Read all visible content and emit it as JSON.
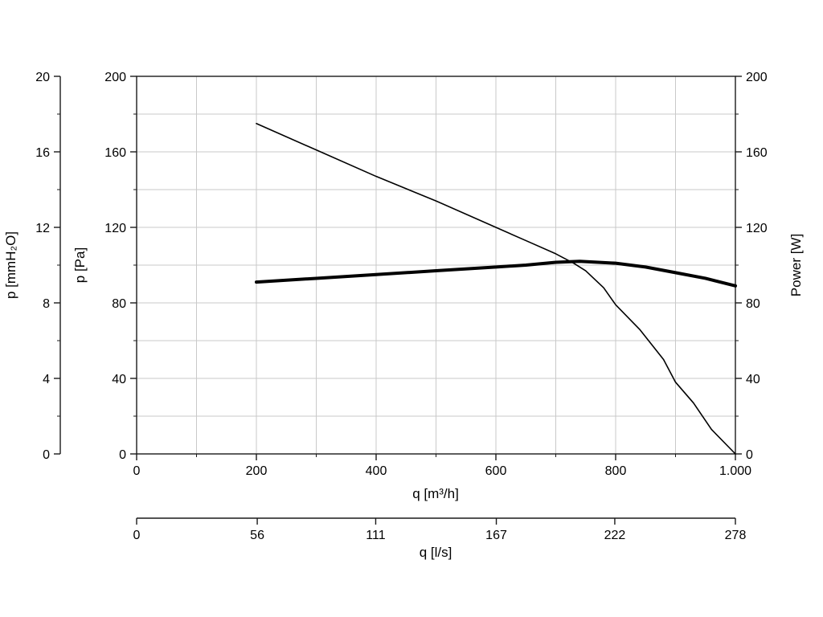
{
  "chart_data": {
    "type": "line",
    "title": "",
    "legend": "none",
    "grid": "on",
    "axes": {
      "y_left_outer": {
        "label": "p [mmH₂O]",
        "ticks": [
          0,
          4,
          8,
          12,
          16,
          20
        ],
        "range": [
          0,
          20
        ]
      },
      "y_left_inner": {
        "label": "p [Pa]",
        "ticks": [
          0,
          40,
          80,
          120,
          160,
          200
        ],
        "range": [
          0,
          200
        ],
        "minor_step": 20
      },
      "y_right": {
        "label": "Power [W]",
        "ticks": [
          0,
          40,
          80,
          120,
          160,
          200
        ],
        "range": [
          0,
          200
        ]
      },
      "x_main": {
        "label": "q [m³/h]",
        "tick_labels": [
          "0",
          "200",
          "400",
          "600",
          "800",
          "1.000"
        ],
        "tick_values": [
          0,
          200,
          400,
          600,
          800,
          1000
        ],
        "range": [
          0,
          1000
        ],
        "minor_step": 100
      },
      "x_secondary": {
        "label": "q [l/s]",
        "tick_labels": [
          "0",
          "56",
          "111",
          "167",
          "222",
          "278"
        ],
        "tick_values": [
          0,
          56,
          111,
          167,
          222,
          278
        ],
        "range": [
          0,
          278
        ]
      }
    },
    "series": [
      {
        "name": "pressure-curve",
        "unit": "Pa",
        "stroke_width": 1.6,
        "points": [
          [
            200,
            175
          ],
          [
            300,
            161
          ],
          [
            400,
            147
          ],
          [
            500,
            134
          ],
          [
            600,
            120
          ],
          [
            650,
            113
          ],
          [
            700,
            106
          ],
          [
            730,
            101
          ],
          [
            750,
            97
          ],
          [
            780,
            88
          ],
          [
            800,
            79
          ],
          [
            840,
            66
          ],
          [
            880,
            50
          ],
          [
            900,
            38
          ],
          [
            930,
            27
          ],
          [
            960,
            13
          ],
          [
            1000,
            0
          ]
        ]
      },
      {
        "name": "power-curve",
        "unit": "W",
        "stroke_width": 4,
        "points": [
          [
            200,
            91
          ],
          [
            300,
            93
          ],
          [
            400,
            95
          ],
          [
            500,
            97
          ],
          [
            600,
            99
          ],
          [
            650,
            100
          ],
          [
            700,
            101.5
          ],
          [
            740,
            102
          ],
          [
            800,
            101
          ],
          [
            850,
            99
          ],
          [
            900,
            96
          ],
          [
            950,
            93
          ],
          [
            1000,
            89
          ]
        ]
      }
    ],
    "colors": {
      "curve": "#000000",
      "grid": "#c9c9c9",
      "axis": "#1a1a1a",
      "background": "#ffffff"
    }
  }
}
